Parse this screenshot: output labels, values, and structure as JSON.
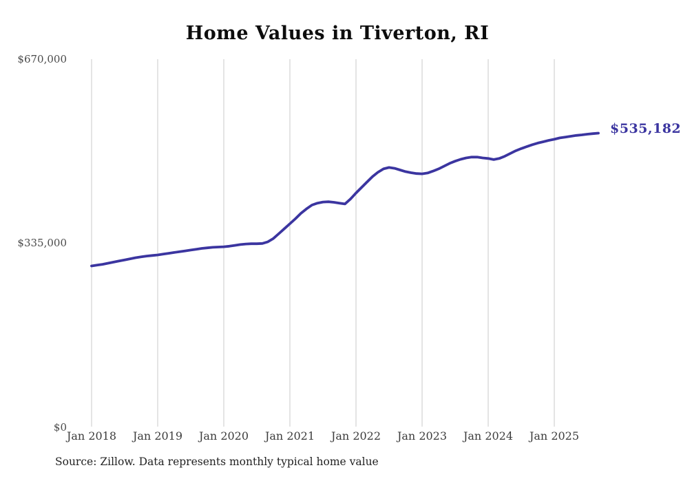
{
  "title": "Home Values in Tiverton, RI",
  "source_note": "Source: Zillow. Data represents monthly typical home value",
  "colors": {
    "line": "#3b35a0",
    "grid": "#c9c9c9",
    "title_text": "#0d0d0d",
    "axis_text": "#424242",
    "end_label_text": "#3b35a0"
  },
  "chart_data": {
    "type": "line",
    "title": "Home Values in Tiverton, RI",
    "ylabel": "",
    "xlabel": "",
    "ylim": [
      0,
      670000
    ],
    "y_tick_labels": [
      "$670,000",
      "$335,000",
      "$0"
    ],
    "y_tick_values": [
      670000,
      335000,
      0
    ],
    "x_tick_labels": [
      "Jan 2018",
      "Jan 2019",
      "Jan 2020",
      "Jan 2021",
      "Jan 2022",
      "Jan 2023",
      "Jan 2024",
      "Jan 2025"
    ],
    "grid": "vertical-only",
    "legend": "none",
    "last_value_label": "$535,182",
    "series": [
      {
        "name": "Typical home value",
        "cadence": "monthly",
        "start": "Jan 2018",
        "end": "Sep 2025",
        "values": [
          293000,
          294500,
          296000,
          298000,
          300000,
          302000,
          304000,
          306000,
          308000,
          309500,
          311000,
          312000,
          313000,
          314500,
          316000,
          317500,
          319000,
          320500,
          322000,
          323500,
          325000,
          326000,
          327000,
          327500,
          328000,
          329000,
          330500,
          332000,
          333000,
          333500,
          333500,
          334000,
          337000,
          343000,
          352000,
          361000,
          370000,
          379000,
          389000,
          397000,
          404000,
          407500,
          409500,
          410000,
          409000,
          407500,
          406000,
          415000,
          426000,
          436000,
          446000,
          456000,
          464000,
          470000,
          472500,
          471000,
          468000,
          465000,
          463000,
          461500,
          461000,
          462500,
          466000,
          470000,
          475000,
          480000,
          484000,
          487500,
          490000,
          491500,
          491500,
          490000,
          489000,
          487000,
          489000,
          493000,
          498000,
          503000,
          507000,
          510500,
          514000,
          517000,
          519500,
          522000,
          524000,
          526500,
          528000,
          529500,
          531000,
          532000,
          533200,
          534200,
          535182
        ]
      }
    ]
  }
}
